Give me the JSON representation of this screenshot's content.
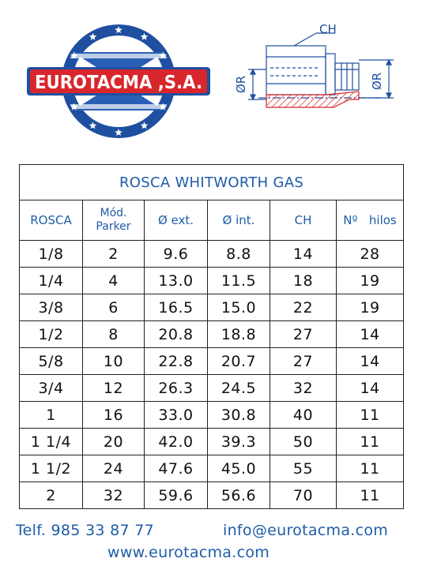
{
  "brand": {
    "name": "EUROTACMA ,S.A.",
    "blue": "#1f4fa0",
    "red": "#d9262c"
  },
  "drawing": {
    "label_ch": "CH",
    "label_r_left": "ØR",
    "label_r_right": "ØR"
  },
  "table": {
    "title": "ROSCA WHITWORTH GAS",
    "headers": {
      "rosca": "ROSCA",
      "mod_line1": "Mód.",
      "mod_line2": "Parker",
      "ext": "Ø ext.",
      "int": "Ø int.",
      "ch": "CH",
      "hilos_no": "Nº",
      "hilos": "hilos"
    },
    "rows": [
      [
        "1/8",
        "2",
        "9.6",
        "8.8",
        "14",
        "28"
      ],
      [
        "1/4",
        "4",
        "13.0",
        "11.5",
        "18",
        "19"
      ],
      [
        "3/8",
        "6",
        "16.5",
        "15.0",
        "22",
        "19"
      ],
      [
        "1/2",
        "8",
        "20.8",
        "18.8",
        "27",
        "14"
      ],
      [
        "5/8",
        "10",
        "22.8",
        "20.7",
        "27",
        "14"
      ],
      [
        "3/4",
        "12",
        "26.3",
        "24.5",
        "32",
        "14"
      ],
      [
        "1",
        "16",
        "33.0",
        "30.8",
        "40",
        "11"
      ],
      [
        "1 1/4",
        "20",
        "42.0",
        "39.3",
        "50",
        "11"
      ],
      [
        "1 1/2",
        "24",
        "47.6",
        "45.0",
        "55",
        "11"
      ],
      [
        "2",
        "32",
        "59.6",
        "56.6",
        "70",
        "11"
      ]
    ]
  },
  "contact": {
    "phone": "Telf. 985 33 87 77",
    "email": "info@eurotacma.com",
    "website": "www.eurotacma.com"
  }
}
